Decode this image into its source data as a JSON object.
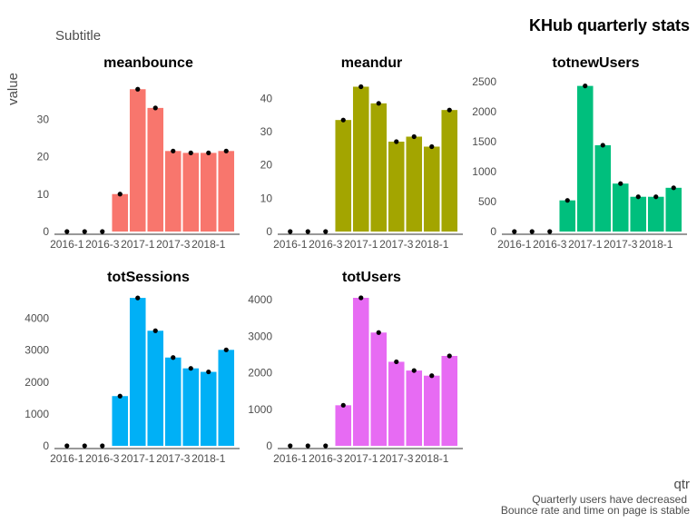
{
  "title": "KHub quarterly stats",
  "subtitle": "Subtitle",
  "caption_lines": [
    "Quarterly users have decreased",
    "Bounce rate and time on page is stable"
  ],
  "chart_data": {
    "type": "bar",
    "xlabel": "qtr",
    "ylabel": "value",
    "grid": false,
    "legend": "none",
    "facet_scales": "free_y",
    "categories": [
      "2016-1",
      "2016-2",
      "2016-3",
      "2016-4",
      "2017-1",
      "2017-2",
      "2017-3",
      "2017-4",
      "2018-1",
      "2018-2"
    ],
    "x_tick_labels": [
      "2016-1",
      "2016-3",
      "2017-1",
      "2017-3",
      "2018-1"
    ],
    "x_tick_categories": [
      "2016-1",
      "2016-3",
      "2017-1",
      "2017-3",
      "2018-1"
    ],
    "point_color": "#000000",
    "panels": [
      {
        "name": "meanbounce",
        "color": "#F8766D",
        "yticks": [
          0,
          10,
          20,
          30
        ],
        "ylim": [
          0,
          40
        ],
        "values": [
          0,
          0,
          0,
          10,
          38,
          33,
          21.5,
          21,
          21,
          21.5
        ]
      },
      {
        "name": "meandur",
        "color": "#A3A500",
        "yticks": [
          0,
          10,
          20,
          30,
          40
        ],
        "ylim": [
          0,
          45
        ],
        "values": [
          0,
          0,
          0,
          33.5,
          43.5,
          38.5,
          27,
          28.5,
          25.5,
          36.5
        ]
      },
      {
        "name": "totnewUsers",
        "color": "#00BF7D",
        "yticks": [
          0,
          500,
          1000,
          1500,
          2000,
          2500
        ],
        "ylim": [
          0,
          2500
        ],
        "values": [
          0,
          0,
          0,
          520,
          2430,
          1440,
          800,
          580,
          580,
          730
        ]
      },
      {
        "name": "totSessions",
        "color": "#00B0F6",
        "yticks": [
          0,
          1000,
          2000,
          3000,
          4000
        ],
        "ylim": [
          0,
          4700
        ],
        "values": [
          0,
          0,
          0,
          1560,
          4640,
          3610,
          2770,
          2430,
          2320,
          3010
        ]
      },
      {
        "name": "totUsers",
        "color": "#E76BF3",
        "yticks": [
          0,
          1000,
          2000,
          3000,
          4000
        ],
        "ylim": [
          0,
          4100
        ],
        "values": [
          0,
          0,
          0,
          1110,
          4050,
          3100,
          2300,
          2060,
          1920,
          2460
        ]
      }
    ]
  }
}
